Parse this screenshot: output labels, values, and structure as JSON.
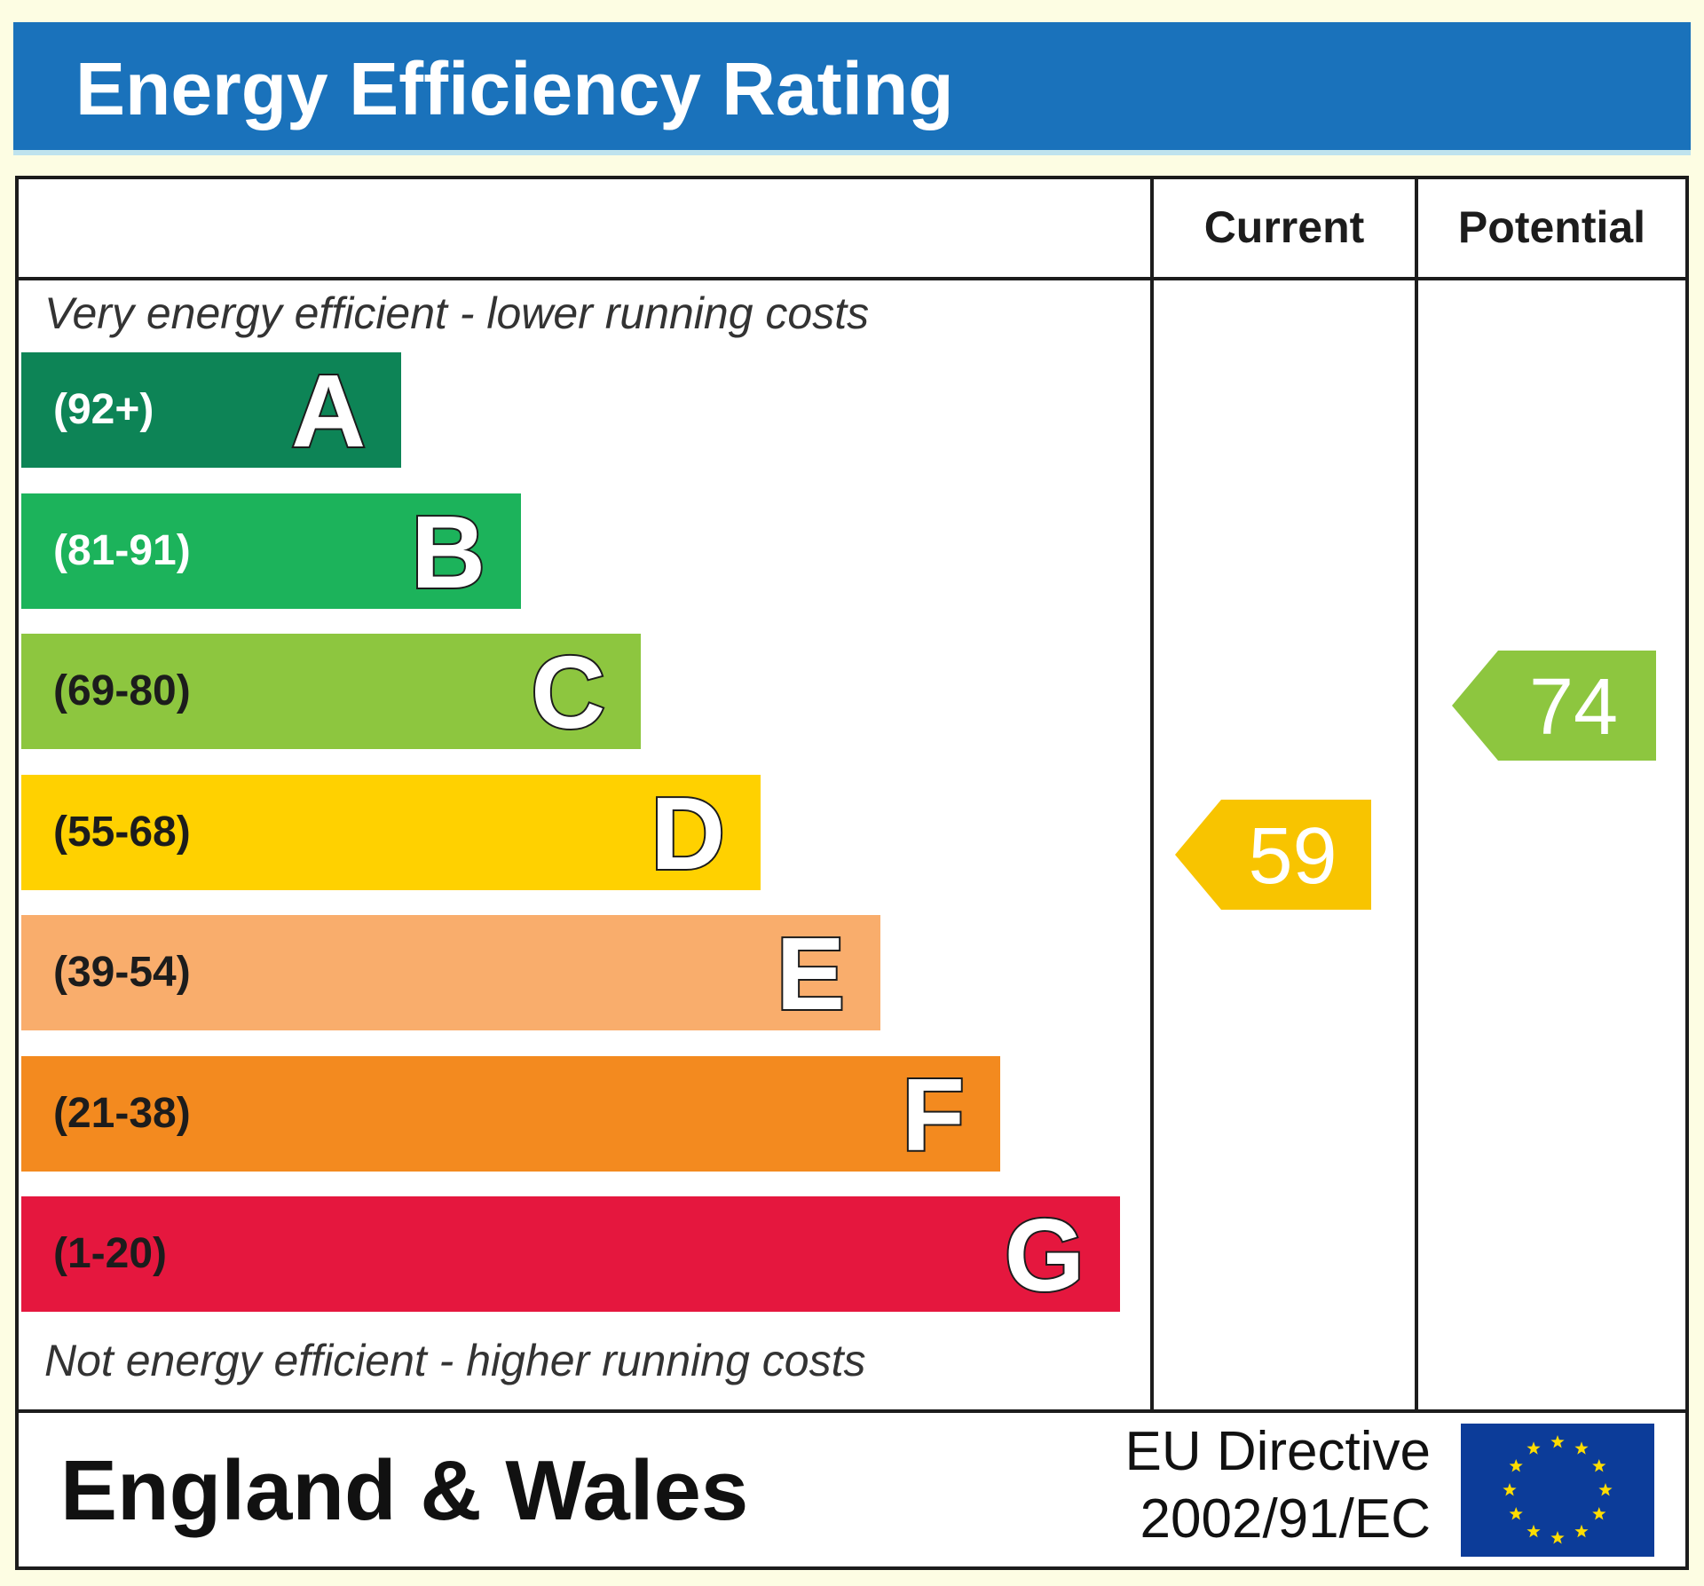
{
  "header": {
    "title": "Energy Efficiency Rating"
  },
  "chart_data": {
    "type": "bar",
    "columns": {
      "current": "Current",
      "potential": "Potential"
    },
    "top_caption": "Very energy efficient - lower running costs",
    "bottom_caption": "Not energy efficient - higher running costs",
    "bands": [
      {
        "letter": "A",
        "range": "(92+)",
        "min": 92,
        "max": 100,
        "color": "#0d8456",
        "range_color": "#ffffff"
      },
      {
        "letter": "B",
        "range": "(81-91)",
        "min": 81,
        "max": 91,
        "color": "#1cb35b",
        "range_color": "#ffffff"
      },
      {
        "letter": "C",
        "range": "(69-80)",
        "min": 69,
        "max": 80,
        "color": "#8dc63f",
        "range_color": "#1c1c1c"
      },
      {
        "letter": "D",
        "range": "(55-68)",
        "min": 55,
        "max": 68,
        "color": "#ffd100",
        "range_color": "#1c1c1c"
      },
      {
        "letter": "E",
        "range": "(39-54)",
        "min": 39,
        "max": 54,
        "color": "#f9ad6c",
        "range_color": "#1c1c1c"
      },
      {
        "letter": "F",
        "range": "(21-38)",
        "min": 21,
        "max": 38,
        "color": "#f38a1f",
        "range_color": "#1c1c1c"
      },
      {
        "letter": "G",
        "range": "(1-20)",
        "min": 1,
        "max": 20,
        "color": "#e5173e",
        "range_color": "#1c1c1c"
      }
    ],
    "current": {
      "value": 59,
      "label": "59",
      "band": "D",
      "color": "#f8c400"
    },
    "potential": {
      "value": 74,
      "label": "74",
      "band": "C",
      "color": "#8dc63f"
    }
  },
  "footer": {
    "region": "England & Wales",
    "directive_line1": "EU Directive",
    "directive_line2": "2002/91/EC",
    "flag_icon": "eu-flag-icon",
    "flag_color": "#0c3c99",
    "star_color": "#ffdd00"
  }
}
